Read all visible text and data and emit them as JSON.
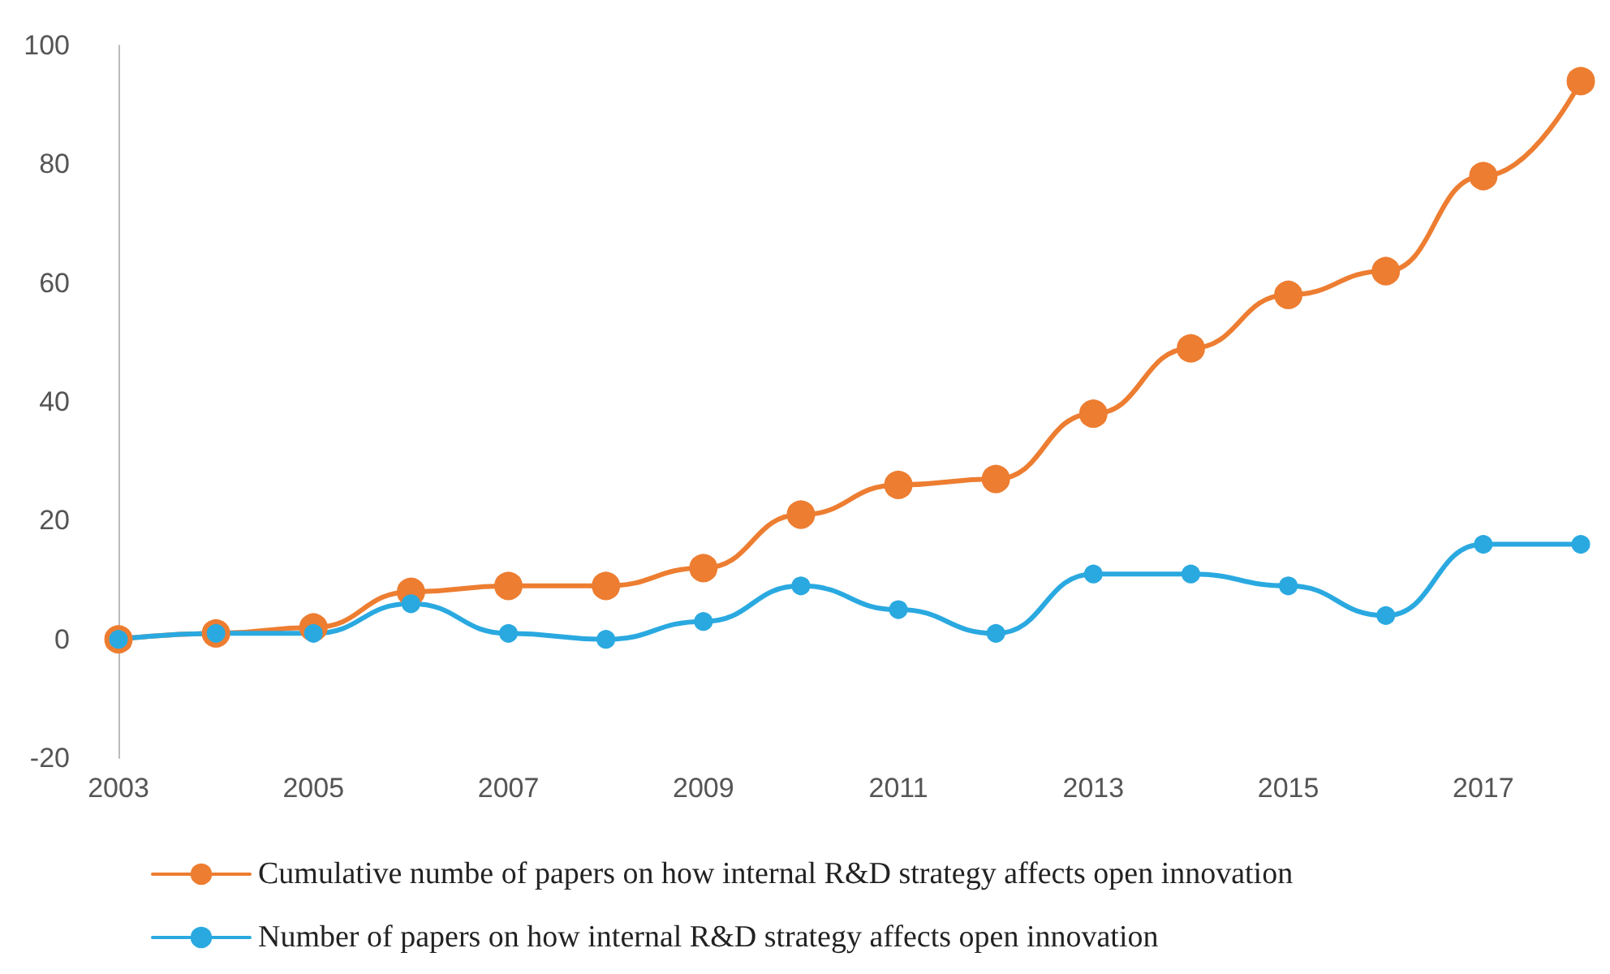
{
  "chart_data": {
    "type": "line",
    "categories": [
      "2003",
      null,
      "2005",
      null,
      "2007",
      null,
      "2009",
      null,
      "2011",
      null,
      "2013",
      null,
      "2015",
      null,
      "2017",
      null
    ],
    "series": [
      {
        "name": "Cumulative numbe of papers on how internal R&D strategy affects open innovation",
        "color": "#ed7d31",
        "values": [
          0,
          1,
          2,
          8,
          9,
          9,
          12,
          21,
          26,
          27,
          38,
          49,
          58,
          62,
          78,
          94
        ]
      },
      {
        "name": "Number of papers on how internal R&D strategy affects open innovation",
        "color": "#2aa9e0",
        "values": [
          0,
          1,
          1,
          6,
          1,
          0,
          3,
          9,
          5,
          1,
          11,
          11,
          9,
          4,
          16,
          16
        ]
      }
    ],
    "ylim": [
      -20,
      100
    ],
    "yticks": [
      -20,
      0,
      20,
      40,
      60,
      80,
      100
    ],
    "grid": false,
    "legend": "bottom",
    "marker": "circle",
    "line_style": "solid"
  }
}
